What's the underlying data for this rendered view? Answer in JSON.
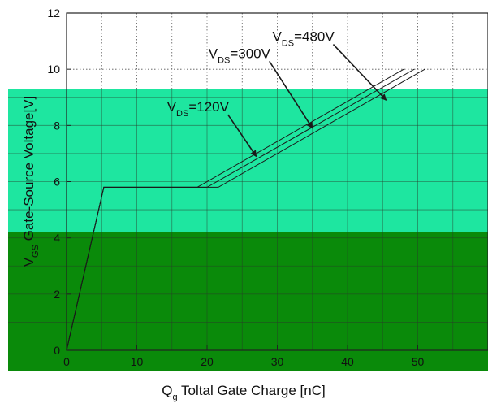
{
  "chart_data": {
    "type": "line",
    "xlabel": "Q",
    "xlabel_sub": "g",
    "xlabel_rest": " Toltal Gate Charge [nC]",
    "ylabel": "V",
    "ylabel_sub": "GS",
    "ylabel_rest": " Gate-Source Voltage[V]",
    "xlim": [
      0,
      60
    ],
    "ylim": [
      0,
      12
    ],
    "xticks": [
      0,
      10,
      20,
      30,
      40,
      50
    ],
    "yticks": [
      0,
      2,
      4,
      6,
      8,
      10,
      12
    ],
    "grid": true,
    "grid_style": "dotted",
    "series": [
      {
        "name": "V_DS=120V",
        "x": [
          0,
          5.3,
          18.6,
          48.0
        ],
        "y": [
          0,
          5.8,
          5.8,
          10.0
        ]
      },
      {
        "name": "V_DS=300V",
        "x": [
          0,
          5.3,
          20.0,
          49.5
        ],
        "y": [
          0,
          5.8,
          5.8,
          10.0
        ]
      },
      {
        "name": "V_DS=480V",
        "x": [
          0,
          5.3,
          21.6,
          51.0
        ],
        "y": [
          0,
          5.8,
          5.8,
          10.0
        ]
      }
    ],
    "annotations": [
      {
        "main": "V",
        "sub": "DS",
        "rest": "=120V",
        "x_text": 14.3,
        "y_text": 8.5,
        "arrow_to": [
          27.0,
          6.9
        ]
      },
      {
        "main": "V",
        "sub": "DS",
        "rest": "=300V",
        "x_text": 20.2,
        "y_text": 10.4,
        "arrow_to": [
          35.0,
          7.9
        ]
      },
      {
        "main": "V",
        "sub": "DS",
        "rest": "=480V",
        "x_text": 29.3,
        "y_text": 11.0,
        "arrow_to": [
          45.5,
          8.9
        ]
      }
    ],
    "overlay_colors": [
      "#1ee6a0",
      "#0a8a0a"
    ]
  }
}
